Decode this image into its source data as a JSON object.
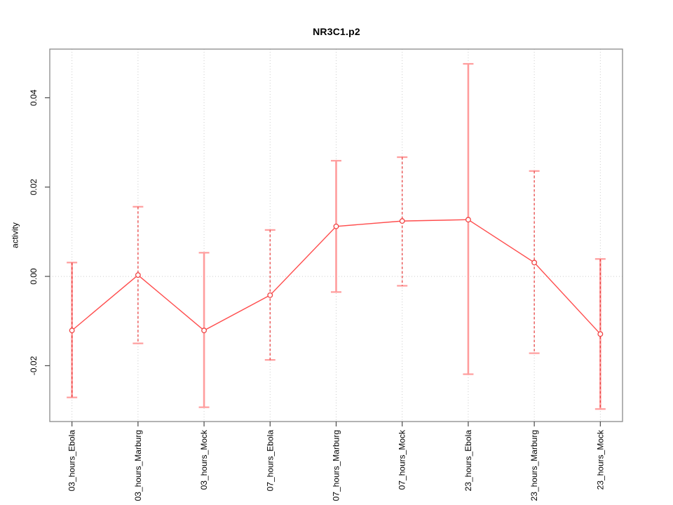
{
  "chart_data": {
    "type": "line",
    "title": "NR3C1.p2",
    "xlabel": "",
    "ylabel": "activity",
    "categories": [
      "03_hours_Ebola",
      "03_hours_Marburg",
      "03_hours_Mock",
      "07_hours_Ebola",
      "07_hours_Marburg",
      "07_hours_Mock",
      "23_hours_Ebola",
      "23_hours_Marburg",
      "23_hours_Mock"
    ],
    "series": [
      {
        "name": "activity",
        "values": [
          -0.0121,
          0.0003,
          -0.0121,
          -0.0042,
          0.0112,
          0.0124,
          0.0127,
          0.0031,
          -0.0129
        ],
        "error_high": [
          0.0031,
          0.0156,
          0.0053,
          0.0104,
          0.0259,
          0.0267,
          0.0476,
          0.0236,
          0.0039
        ],
        "error_low": [
          -0.0271,
          -0.015,
          -0.0293,
          -0.0187,
          -0.0035,
          -0.0021,
          -0.0219,
          -0.0172,
          -0.0297
        ],
        "bar_styles": [
          "solid+dashed",
          "dashed",
          "solid",
          "dashed",
          "solid",
          "dashed",
          "solid",
          "dashed",
          "solid+dashed"
        ]
      }
    ],
    "y_ticks": [
      -0.02,
      0,
      0.02,
      0.04
    ],
    "y_tick_labels": [
      "-0.02",
      "0.00",
      "0.02",
      "0.04"
    ],
    "ylim": [
      -0.0325,
      0.0509
    ],
    "legend": "none",
    "grid": {
      "vertical_at_categories": true,
      "horizontal_at_zero": true,
      "style": "dotted"
    },
    "marker": "open-circle",
    "colors": {
      "line": "#ff4d4d",
      "marker_stroke": "#ef4444",
      "marker_fill": "#ffffff",
      "bar_solid": "#ff9d9d",
      "bar_dashed": "#e84545",
      "cap": "#ff9d9d",
      "grid": "#cccccc",
      "box": "#8a8a8a",
      "tick": "#4a4a4a",
      "text": "#000000"
    }
  }
}
